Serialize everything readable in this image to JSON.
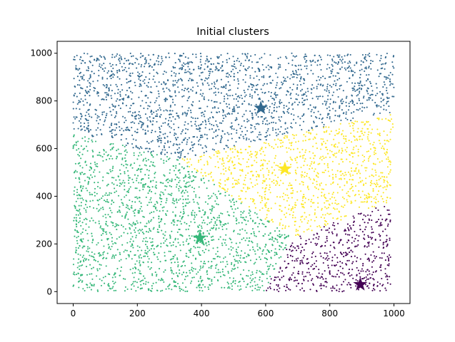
{
  "chart_data": {
    "type": "scatter",
    "title": "Initial clusters",
    "xlabel": "",
    "ylabel": "",
    "xlim": [
      -50,
      1050
    ],
    "ylim": [
      -50,
      1050
    ],
    "x_ticks": [
      0,
      200,
      400,
      600,
      800,
      1000
    ],
    "y_ticks": [
      0,
      200,
      400,
      600,
      800,
      1000
    ],
    "x_tick_labels": [
      "0",
      "200",
      "400",
      "600",
      "800",
      "1000"
    ],
    "y_tick_labels": [
      "0",
      "200",
      "400",
      "600",
      "800",
      "1000"
    ],
    "grid": false,
    "legend": "none",
    "points_per_cluster_approx": [
      900,
      1300,
      1650,
      1300
    ],
    "series": [
      {
        "color": "#440154",
        "centroid": [
          895,
          30
        ],
        "region": "bottom-right"
      },
      {
        "color": "#31688e",
        "centroid": [
          585,
          770
        ],
        "region": "top"
      },
      {
        "color": "#35b779",
        "centroid": [
          395,
          225
        ],
        "region": "left / bottom-left"
      },
      {
        "color": "#fde725",
        "centroid": [
          660,
          515
        ],
        "region": "center-right"
      }
    ]
  }
}
